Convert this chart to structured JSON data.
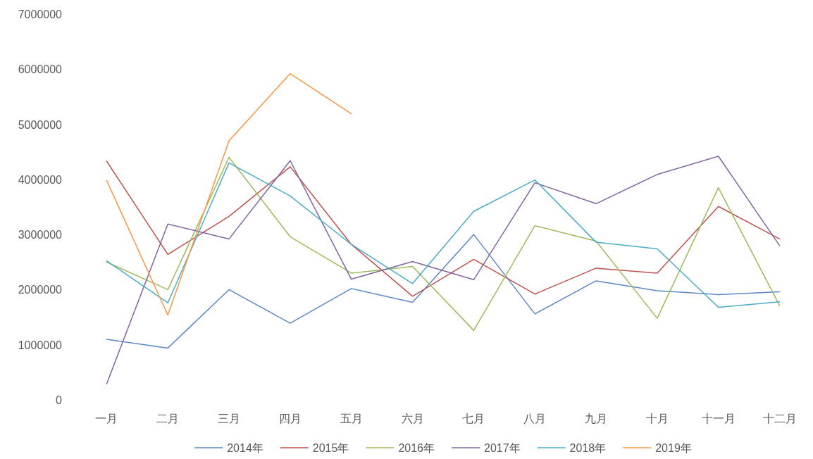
{
  "chart_data": {
    "type": "line",
    "categories": [
      "一月",
      "二月",
      "三月",
      "四月",
      "五月",
      "六月",
      "七月",
      "八月",
      "九月",
      "十月",
      "十一月",
      "十二月"
    ],
    "series": [
      {
        "name": "2014年",
        "color": "#5b87c8",
        "values": [
          1100000,
          940000,
          2000000,
          1390000,
          2020000,
          1770000,
          3000000,
          1560000,
          2160000,
          1980000,
          1910000,
          1960000
        ]
      },
      {
        "name": "2015年",
        "color": "#c0504d",
        "values": [
          4330000,
          2640000,
          3330000,
          4230000,
          2820000,
          1880000,
          2550000,
          1920000,
          2390000,
          2300000,
          3510000,
          2920000
        ]
      },
      {
        "name": "2016年",
        "color": "#9bbb59",
        "values": [
          2500000,
          2000000,
          4400000,
          2960000,
          2300000,
          2420000,
          1260000,
          3160000,
          2880000,
          1480000,
          3850000,
          1710000
        ]
      },
      {
        "name": "2017年",
        "color": "#8064a2",
        "values": [
          290000,
          3190000,
          2920000,
          4340000,
          2190000,
          2510000,
          2180000,
          3940000,
          3560000,
          4090000,
          4420000,
          2800000
        ]
      },
      {
        "name": "2018年",
        "color": "#4bacc6",
        "values": [
          2520000,
          1760000,
          4300000,
          3700000,
          2820000,
          2110000,
          3420000,
          3990000,
          2860000,
          2740000,
          1680000,
          1780000
        ]
      },
      {
        "name": "2019年",
        "color": "#f79646",
        "values": [
          3980000,
          1540000,
          4700000,
          5920000,
          5190000,
          null,
          null,
          null,
          null,
          null,
          null,
          null
        ]
      }
    ],
    "ylim": [
      0,
      7000000
    ],
    "yticks": [
      0,
      1000000,
      2000000,
      3000000,
      4000000,
      5000000,
      6000000,
      7000000
    ],
    "grid": false,
    "legend": "bottom"
  }
}
